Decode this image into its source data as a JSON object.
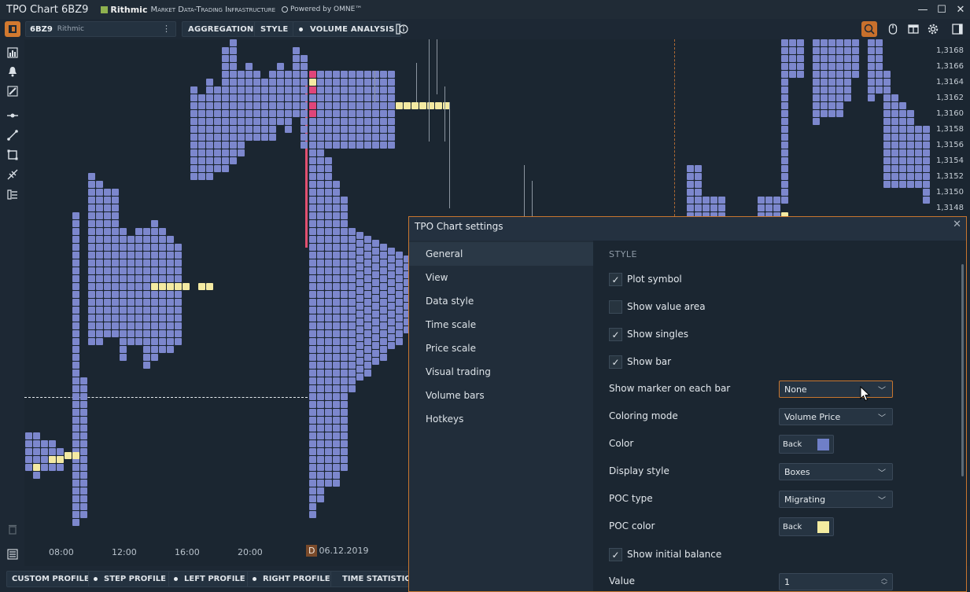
{
  "window": {
    "title": "TPO Chart 6BZ9",
    "brand": "Rithmic",
    "brand_tagline": "Market Data-Trading Infrastructure",
    "powered": "Powered by OMNE™",
    "minimize": "—",
    "maximize": "☐",
    "close": "✕"
  },
  "toolbar": {
    "symbol": "6BZ9",
    "feed": "Rithmic",
    "more": "⋮",
    "aggregation": "AGGREGATION",
    "style": "STYLE",
    "volume_analysis": "VOLUME ANALYSIS"
  },
  "price_axis": [
    "1,3168",
    "1,3166",
    "1,3164",
    "1,3162",
    "1,3160",
    "1,3158",
    "1,3156",
    "1,3154",
    "1,3152",
    "1,3150",
    "1,3148"
  ],
  "time_axis": [
    "08:00",
    "12:00",
    "16:00",
    "20:00"
  ],
  "date_marker": {
    "letter": "D",
    "date": "06.12.2019"
  },
  "bottom_bar": {
    "custom_profile": "CUSTOM PROFILE",
    "step_profile": "STEP PROFILE",
    "left_profile": "LEFT PROFILE",
    "right_profile": "RIGHT PROFILE",
    "time_statistics": "TIME STATISTICS"
  },
  "dialog": {
    "title": "TPO Chart settings",
    "nav": [
      "General",
      "View",
      "Data style",
      "Time scale",
      "Price scale",
      "Visual trading",
      "Volume bars",
      "Hotkeys"
    ],
    "active_nav": "General",
    "section": "STYLE",
    "plot_symbol": {
      "label": "Plot symbol",
      "checked": true
    },
    "show_value_area": {
      "label": "Show value area",
      "checked": false
    },
    "show_singles": {
      "label": "Show singles",
      "checked": true
    },
    "show_bar": {
      "label": "Show bar",
      "checked": true
    },
    "show_marker": {
      "label": "Show marker on each bar",
      "value": "None"
    },
    "coloring_mode": {
      "label": "Coloring mode",
      "value": "Volume Price"
    },
    "color": {
      "label": "Color",
      "value": "Back",
      "swatch": "#6f7fc8"
    },
    "display_style": {
      "label": "Display style",
      "value": "Boxes"
    },
    "poc_type": {
      "label": "POC type",
      "value": "Migrating"
    },
    "poc_color": {
      "label": "POC color",
      "value": "Back",
      "swatch": "#f4eca0"
    },
    "show_initial_balance": {
      "label": "Show initial balance",
      "checked": true
    },
    "value": {
      "label": "Value",
      "value": "1"
    }
  },
  "colors": {
    "tpo_blue": "#7c87cd",
    "tpo_yellow": "#f4eaa2",
    "tpo_red": "#e0457a",
    "accent_orange": "#c8762f"
  }
}
